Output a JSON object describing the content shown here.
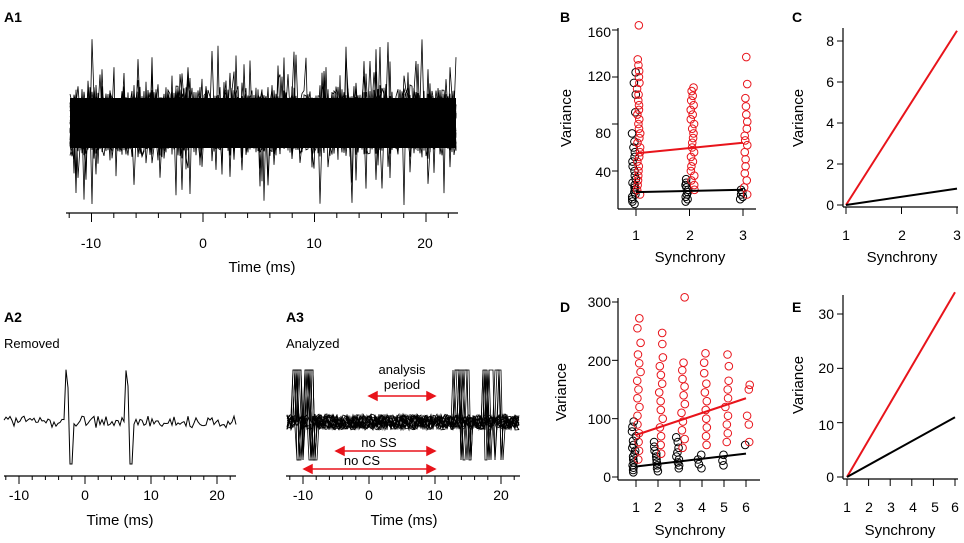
{
  "panels": {
    "A1": {
      "label": "A1",
      "xlabel": "Time (ms)",
      "xticks": [
        "-10",
        "0",
        "10",
        "20"
      ]
    },
    "A2": {
      "label": "A2",
      "annotation": "Removed",
      "xlabel": "Time (ms)",
      "xticks": [
        "-10",
        "0",
        "10",
        "20"
      ]
    },
    "A3": {
      "label": "A3",
      "annotation": "Analyzed",
      "xlabel": "Time (ms)",
      "xticks": [
        "-10",
        "0",
        "10",
        "20"
      ],
      "arrows": {
        "analysis_line1": "analysis",
        "analysis_line2": "period",
        "no_ss": "no SS",
        "no_cs": "no CS"
      }
    },
    "B": {
      "label": "B",
      "xlabel": "Synchrony",
      "ylabel": "Variance",
      "xticks": [
        "1",
        "2",
        "3"
      ],
      "yticks": [
        "40",
        "80",
        "120",
        "160"
      ]
    },
    "C": {
      "label": "C",
      "xlabel": "Synchrony",
      "ylabel": "Variance",
      "xticks": [
        "1",
        "2",
        "3"
      ],
      "yticks": [
        "0",
        "2",
        "4",
        "6",
        "8"
      ]
    },
    "D": {
      "label": "D",
      "xlabel": "Synchrony",
      "ylabel": "Variance",
      "xticks": [
        "1",
        "2",
        "3",
        "4",
        "5",
        "6"
      ],
      "yticks": [
        "0",
        "100",
        "200",
        "300"
      ]
    },
    "E": {
      "label": "E",
      "xlabel": "Synchrony",
      "ylabel": "Variance",
      "xticks": [
        "1",
        "2",
        "3",
        "4",
        "5",
        "6"
      ],
      "yticks": [
        "0",
        "10",
        "20",
        "30"
      ]
    }
  },
  "colors": {
    "black": "#000000",
    "red": "#e8141b"
  },
  "chart_data": [
    {
      "panel": "A1",
      "type": "line",
      "title": "",
      "xlabel": "Time (ms)",
      "ylabel": "",
      "xlim": [
        -12,
        23
      ],
      "description_series": "overlaid raw traces"
    },
    {
      "panel": "A2",
      "type": "line",
      "title": "",
      "xlabel": "Time (ms)",
      "xlim": [
        -12,
        23
      ],
      "spikes_at_ms": [
        -2.8,
        6.3
      ]
    },
    {
      "panel": "A3",
      "type": "line",
      "title": "",
      "xlabel": "Time (ms)",
      "xlim": [
        -12,
        23
      ],
      "intervals": {
        "analysis period": [
          0,
          10
        ],
        "no SS": [
          -5,
          10
        ],
        "no CS": [
          -12,
          10
        ]
      }
    },
    {
      "panel": "B",
      "type": "scatter",
      "xlabel": "Synchrony",
      "ylabel": "Variance",
      "xlim": [
        0.7,
        3.2
      ],
      "ylim": [
        10,
        165
      ],
      "series": [
        {
          "name": "black",
          "color": "#000000",
          "points": [
            [
              1,
              12
            ],
            [
              1,
              14
            ],
            [
              1,
              16
            ],
            [
              1,
              18
            ],
            [
              1,
              20
            ],
            [
              1,
              22
            ],
            [
              1,
              24
            ],
            [
              1,
              26
            ],
            [
              1,
              28
            ],
            [
              1,
              30
            ],
            [
              1,
              33
            ],
            [
              1,
              36
            ],
            [
              1,
              40
            ],
            [
              1,
              44
            ],
            [
              1,
              48
            ],
            [
              1,
              52
            ],
            [
              1,
              56
            ],
            [
              1,
              60
            ],
            [
              1,
              65
            ],
            [
              1,
              72
            ],
            [
              1,
              90
            ],
            [
              1,
              105
            ],
            [
              1,
              115
            ],
            [
              1,
              124
            ],
            [
              2,
              14
            ],
            [
              2,
              16
            ],
            [
              2,
              18
            ],
            [
              2,
              20
            ],
            [
              2,
              22
            ],
            [
              2,
              24
            ],
            [
              2,
              26
            ],
            [
              2,
              28
            ],
            [
              2,
              30
            ],
            [
              2,
              33
            ],
            [
              3,
              16
            ],
            [
              3,
              18
            ],
            [
              3,
              20
            ],
            [
              3,
              22
            ],
            [
              3,
              24
            ]
          ],
          "fit": [
            [
              1,
              22
            ],
            [
              3,
              24
            ]
          ]
        },
        {
          "name": "red",
          "color": "#e8141b",
          "points": [
            [
              1,
              20
            ],
            [
              1,
              24
            ],
            [
              1,
              28
            ],
            [
              1,
              32
            ],
            [
              1,
              36
            ],
            [
              1,
              40
            ],
            [
              1,
              44
            ],
            [
              1,
              48
            ],
            [
              1,
              52
            ],
            [
              1,
              56
            ],
            [
              1,
              60
            ],
            [
              1,
              64
            ],
            [
              1,
              68
            ],
            [
              1,
              72
            ],
            [
              1,
              76
            ],
            [
              1,
              80
            ],
            [
              1,
              84
            ],
            [
              1,
              88
            ],
            [
              1,
              92
            ],
            [
              1,
              96
            ],
            [
              1,
              100
            ],
            [
              1,
              105
            ],
            [
              1,
              110
            ],
            [
              1,
              115
            ],
            [
              1,
              120
            ],
            [
              1,
              125
            ],
            [
              1,
              130
            ],
            [
              1,
              135
            ],
            [
              1,
              164
            ],
            [
              2,
              24
            ],
            [
              2,
              28
            ],
            [
              2,
              32
            ],
            [
              2,
              36
            ],
            [
              2,
              40
            ],
            [
              2,
              44
            ],
            [
              2,
              48
            ],
            [
              2,
              52
            ],
            [
              2,
              56
            ],
            [
              2,
              60
            ],
            [
              2,
              64
            ],
            [
              2,
              68
            ],
            [
              2,
              72
            ],
            [
              2,
              76
            ],
            [
              2,
              80
            ],
            [
              2,
              84
            ],
            [
              2,
              88
            ],
            [
              2,
              92
            ],
            [
              2,
              96
            ],
            [
              2,
              100
            ],
            [
              2,
              104
            ],
            [
              2,
              108
            ],
            [
              2,
              111
            ],
            [
              3,
              20
            ],
            [
              3,
              26
            ],
            [
              3,
              32
            ],
            [
              3,
              38
            ],
            [
              3,
              44
            ],
            [
              3,
              50
            ],
            [
              3,
              56
            ],
            [
              3,
              62
            ],
            [
              3,
              66
            ],
            [
              3,
              70
            ],
            [
              3,
              76
            ],
            [
              3,
              82
            ],
            [
              3,
              88
            ],
            [
              3,
              95
            ],
            [
              3,
              102
            ],
            [
              3,
              114
            ],
            [
              3,
              137
            ]
          ],
          "fit": [
            [
              1,
              55
            ],
            [
              3,
              64
            ]
          ]
        }
      ]
    },
    {
      "panel": "C",
      "type": "line",
      "xlabel": "Synchrony",
      "ylabel": "Variance",
      "xlim": [
        1,
        3
      ],
      "ylim": [
        0,
        8.7
      ],
      "series": [
        {
          "name": "red",
          "color": "#e8141b",
          "x": [
            1,
            3
          ],
          "y": [
            0,
            8.5
          ]
        },
        {
          "name": "black",
          "color": "#000000",
          "x": [
            1,
            3
          ],
          "y": [
            0,
            0.8
          ]
        }
      ]
    },
    {
      "panel": "D",
      "type": "scatter",
      "xlabel": "Synchrony",
      "ylabel": "Variance",
      "xlim": [
        0.7,
        6.2
      ],
      "ylim": [
        0,
        310
      ],
      "series": [
        {
          "name": "black",
          "color": "#000000",
          "points": [
            [
              1,
              8
            ],
            [
              1,
              12
            ],
            [
              1,
              16
            ],
            [
              1,
              20
            ],
            [
              1,
              25
            ],
            [
              1,
              30
            ],
            [
              1,
              35
            ],
            [
              1,
              40
            ],
            [
              1,
              45
            ],
            [
              1,
              50
            ],
            [
              1,
              55
            ],
            [
              1,
              62
            ],
            [
              1,
              70
            ],
            [
              1,
              78
            ],
            [
              1,
              86
            ],
            [
              1,
              95
            ],
            [
              2,
              10
            ],
            [
              2,
              15
            ],
            [
              2,
              20
            ],
            [
              2,
              25
            ],
            [
              2,
              30
            ],
            [
              2,
              35
            ],
            [
              2,
              40
            ],
            [
              2,
              45
            ],
            [
              2,
              52
            ],
            [
              2,
              60
            ],
            [
              3,
              15
            ],
            [
              3,
              20
            ],
            [
              3,
              25
            ],
            [
              3,
              30
            ],
            [
              3,
              35
            ],
            [
              3,
              42
            ],
            [
              3,
              50
            ],
            [
              3,
              60
            ],
            [
              3,
              68
            ],
            [
              4,
              15
            ],
            [
              4,
              22
            ],
            [
              4,
              30
            ],
            [
              4,
              38
            ],
            [
              5,
              20
            ],
            [
              5,
              28
            ],
            [
              5,
              38
            ],
            [
              6,
              55
            ]
          ],
          "fit": [
            [
              1,
              18
            ],
            [
              6,
              40
            ]
          ]
        },
        {
          "name": "red",
          "color": "#e8141b",
          "points": [
            [
              1,
              30
            ],
            [
              1,
              45
            ],
            [
              1,
              60
            ],
            [
              1,
              75
            ],
            [
              1,
              90
            ],
            [
              1,
              105
            ],
            [
              1,
              120
            ],
            [
              1,
              135
            ],
            [
              1,
              150
            ],
            [
              1,
              165
            ],
            [
              1,
              180
            ],
            [
              1,
              195
            ],
            [
              1,
              210
            ],
            [
              1,
              230
            ],
            [
              1,
              255
            ],
            [
              1,
              272
            ],
            [
              2,
              40
            ],
            [
              2,
              55
            ],
            [
              2,
              70
            ],
            [
              2,
              85
            ],
            [
              2,
              100
            ],
            [
              2,
              115
            ],
            [
              2,
              130
            ],
            [
              2,
              145
            ],
            [
              2,
              160
            ],
            [
              2,
              175
            ],
            [
              2,
              190
            ],
            [
              2,
              205
            ],
            [
              2,
              228
            ],
            [
              2,
              247
            ],
            [
              3,
              50
            ],
            [
              3,
              65
            ],
            [
              3,
              80
            ],
            [
              3,
              95
            ],
            [
              3,
              110
            ],
            [
              3,
              125
            ],
            [
              3,
              140
            ],
            [
              3,
              155
            ],
            [
              3,
              168
            ],
            [
              3,
              183
            ],
            [
              3,
              196
            ],
            [
              3,
              308
            ],
            [
              4,
              55
            ],
            [
              4,
              70
            ],
            [
              4,
              85
            ],
            [
              4,
              100
            ],
            [
              4,
              115
            ],
            [
              4,
              130
            ],
            [
              4,
              145
            ],
            [
              4,
              160
            ],
            [
              4,
              178
            ],
            [
              4,
              196
            ],
            [
              4,
              212
            ],
            [
              5,
              60
            ],
            [
              5,
              75
            ],
            [
              5,
              90
            ],
            [
              5,
              105
            ],
            [
              5,
              120
            ],
            [
              5,
              135
            ],
            [
              5,
              150
            ],
            [
              5,
              165
            ],
            [
              5,
              190
            ],
            [
              5,
              210
            ],
            [
              6,
              60
            ],
            [
              6,
              90
            ],
            [
              6,
              105
            ],
            [
              6,
              150
            ],
            [
              6,
              158
            ]
          ],
          "fit": [
            [
              1,
              72
            ],
            [
              6,
              135
            ]
          ]
        }
      ]
    },
    {
      "panel": "E",
      "type": "line",
      "xlabel": "Synchrony",
      "ylabel": "Variance",
      "xlim": [
        1,
        6
      ],
      "ylim": [
        0,
        34
      ],
      "series": [
        {
          "name": "red",
          "color": "#e8141b",
          "x": [
            1,
            6
          ],
          "y": [
            0,
            34
          ]
        },
        {
          "name": "black",
          "color": "#000000",
          "x": [
            1,
            6
          ],
          "y": [
            0,
            11
          ]
        }
      ]
    }
  ]
}
